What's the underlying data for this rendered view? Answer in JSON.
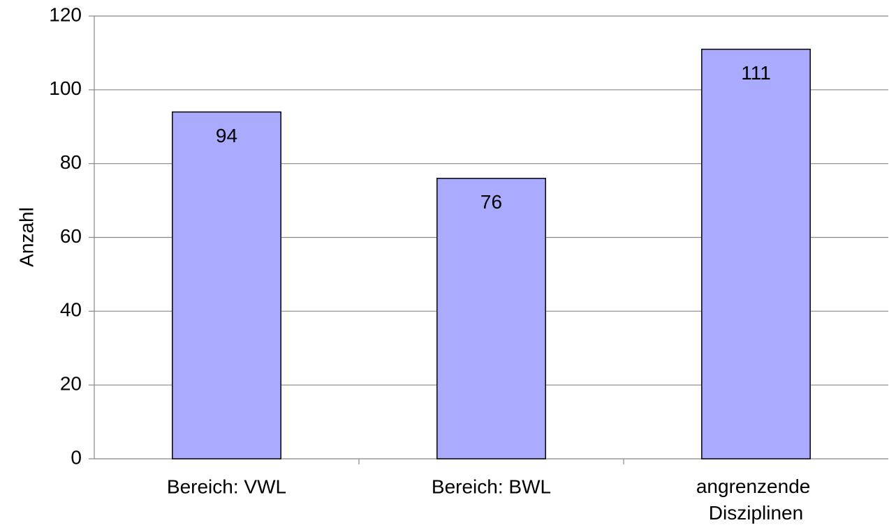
{
  "chart_data": {
    "type": "bar",
    "y_label": "Anzahl",
    "categories": [
      "Bereich: VWL",
      "Bereich: BWL",
      "angrenzende Disziplinen"
    ],
    "values": [
      94,
      76,
      111
    ],
    "color": "#aaaaff",
    "ylim": [
      0,
      120
    ],
    "yticks": [
      0,
      20,
      40,
      60,
      80,
      100,
      120
    ],
    "grid": true
  }
}
